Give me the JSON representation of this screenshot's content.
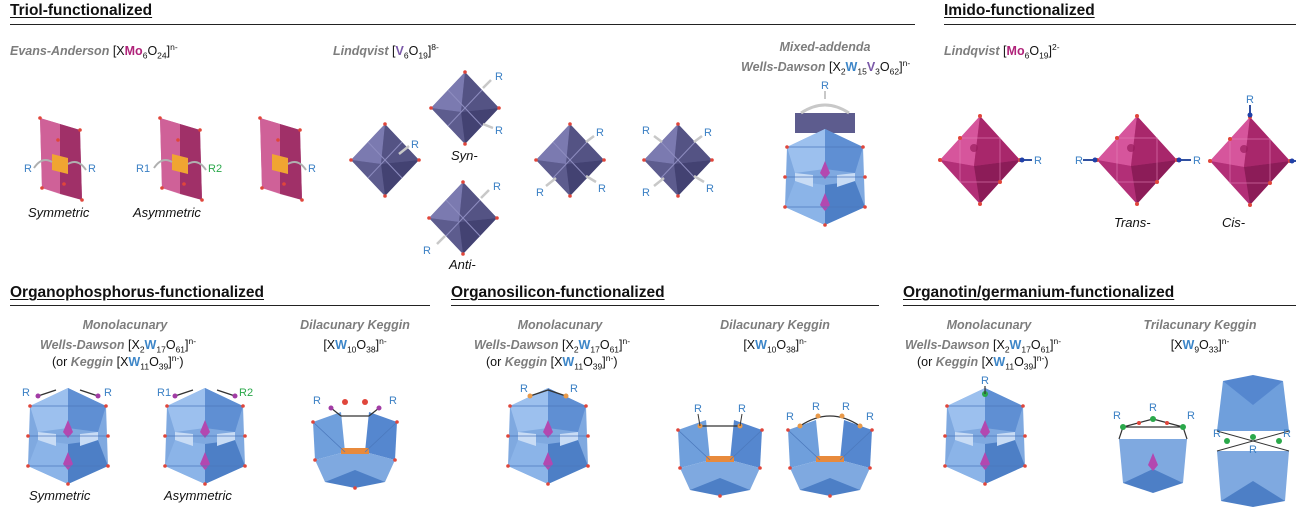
{
  "sections": {
    "triol": "Triol-functionalized",
    "imido": "Imido-functionalized",
    "organophosphorus": "Organophosphorus-functionalized",
    "organosilicon": "Organosilicon-functionalized",
    "organotin": "Organotin/germanium-functionalized"
  },
  "labels": {
    "evans_name": "Evans-Anderson",
    "lindqvist": "Lindqvist",
    "mixed_addenda": "Mixed-addenda",
    "wells_dawson": "Wells-Dawson",
    "monolacunary": "Monolacunary",
    "dilacunary_keggin": "Dilacunary Keggin",
    "trilacunary_keggin": "Trilacunary Keggin",
    "or": "(or",
    "keggin": "Keggin"
  },
  "captions": {
    "symmetric": "Symmetric",
    "asymmetric": "Asymmetric",
    "syn": "Syn-",
    "anti": "Anti-",
    "trans": "Trans-",
    "cis": "Cis-"
  },
  "r_labels": {
    "r": "R",
    "r1": "R1",
    "r2": "R2"
  },
  "colors": {
    "mo_polyhedra": "#b0236f",
    "v_polyhedra": "#5d5c8e",
    "w_polyhedra": "#6f9fdc",
    "oxygen": "#e0463b",
    "heteroatom_core": "#a23ca5",
    "r_group_text": "#3a7fc4",
    "r2_text": "#2aa84a"
  }
}
